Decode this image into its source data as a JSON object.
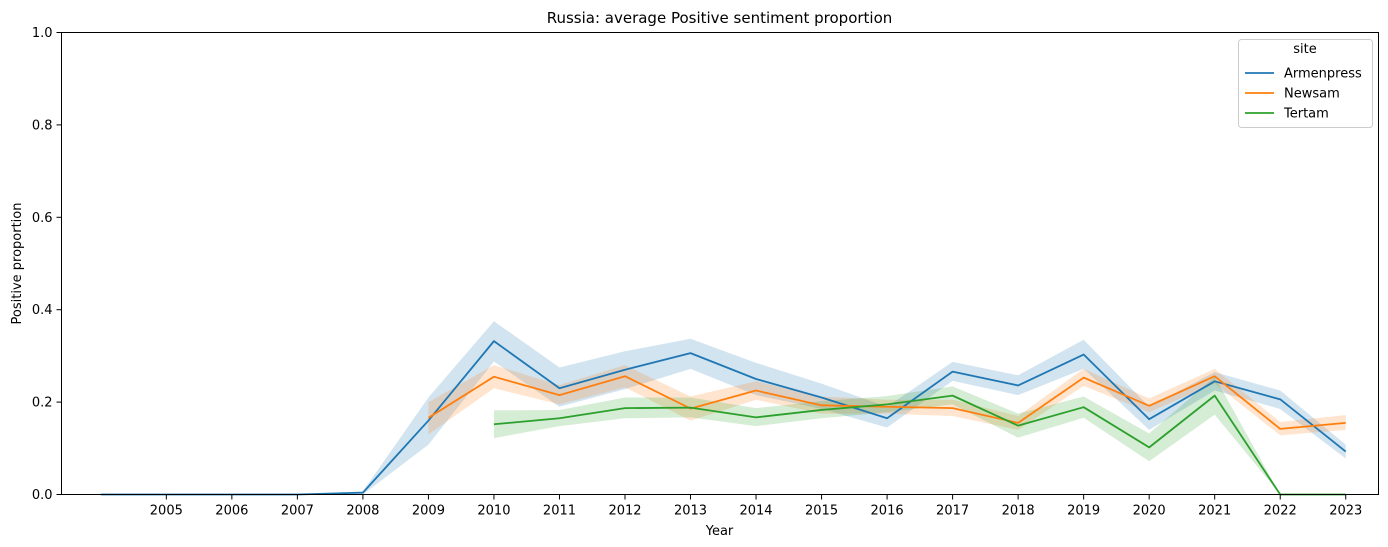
{
  "chart_data": {
    "type": "line",
    "title": "Russia: average Positive sentiment proportion",
    "xlabel": "Year",
    "ylabel": "Positive proportion",
    "x_tick_labels": [
      2005,
      2006,
      2007,
      2008,
      2009,
      2010,
      2011,
      2012,
      2013,
      2014,
      2015,
      2016,
      2017,
      2018,
      2019,
      2020,
      2021,
      2022,
      2023
    ],
    "y_tick_labels": [
      "0.0",
      "0.2",
      "0.4",
      "0.6",
      "0.8",
      "1.0"
    ],
    "xlim": [
      2003.4,
      2023.5
    ],
    "ylim": [
      0,
      1
    ],
    "grid": false,
    "legend": {
      "title": "site",
      "position": "top-right"
    },
    "series": [
      {
        "name": "Armenpress",
        "color": "#1f77b4",
        "x": [
          2004,
          2005,
          2006,
          2007,
          2008,
          2009,
          2010,
          2011,
          2012,
          2013,
          2014,
          2015,
          2016,
          2017,
          2018,
          2019,
          2020,
          2021,
          2022,
          2023
        ],
        "values": [
          0.0,
          0.0,
          0.0,
          0.0,
          0.004,
          0.16,
          0.332,
          0.23,
          0.27,
          0.306,
          0.25,
          0.21,
          0.165,
          0.266,
          0.236,
          0.303,
          0.163,
          0.245,
          0.206,
          0.093
        ],
        "ci_lower": [
          0.0,
          0.0,
          0.0,
          0.0,
          0.0,
          0.108,
          0.288,
          0.19,
          0.228,
          0.272,
          0.215,
          0.185,
          0.145,
          0.246,
          0.215,
          0.272,
          0.14,
          0.225,
          0.185,
          0.078
        ],
        "ci_upper": [
          0.0,
          0.0,
          0.0,
          0.0,
          0.007,
          0.21,
          0.375,
          0.275,
          0.31,
          0.337,
          0.285,
          0.24,
          0.19,
          0.287,
          0.258,
          0.335,
          0.19,
          0.265,
          0.225,
          0.108
        ]
      },
      {
        "name": "Newsam",
        "color": "#ff7f0e",
        "x": [
          2009,
          2010,
          2011,
          2012,
          2013,
          2014,
          2015,
          2016,
          2017,
          2018,
          2019,
          2020,
          2021,
          2022,
          2023
        ],
        "values": [
          0.166,
          0.255,
          0.215,
          0.256,
          0.186,
          0.225,
          0.193,
          0.19,
          0.187,
          0.155,
          0.253,
          0.192,
          0.256,
          0.142,
          0.155
        ],
        "ci_lower": [
          0.13,
          0.23,
          0.195,
          0.232,
          0.16,
          0.205,
          0.175,
          0.175,
          0.17,
          0.14,
          0.235,
          0.178,
          0.24,
          0.128,
          0.14
        ],
        "ci_upper": [
          0.2,
          0.28,
          0.237,
          0.28,
          0.212,
          0.245,
          0.212,
          0.205,
          0.205,
          0.17,
          0.272,
          0.208,
          0.272,
          0.157,
          0.172
        ]
      },
      {
        "name": "Tertam",
        "color": "#2ca02c",
        "x": [
          2010,
          2011,
          2012,
          2013,
          2014,
          2015,
          2016,
          2017,
          2018,
          2019,
          2020,
          2021,
          2022,
          2023
        ],
        "values": [
          0.152,
          0.165,
          0.187,
          0.188,
          0.167,
          0.183,
          0.195,
          0.214,
          0.149,
          0.189,
          0.102,
          0.214,
          0.0,
          0.0
        ],
        "ci_lower": [
          0.122,
          0.148,
          0.165,
          0.167,
          0.148,
          0.165,
          0.178,
          0.195,
          0.123,
          0.166,
          0.072,
          0.173,
          0.0,
          0.0
        ],
        "ci_upper": [
          0.182,
          0.183,
          0.21,
          0.21,
          0.187,
          0.202,
          0.213,
          0.234,
          0.175,
          0.212,
          0.132,
          0.255,
          0.0,
          0.0
        ]
      }
    ]
  }
}
